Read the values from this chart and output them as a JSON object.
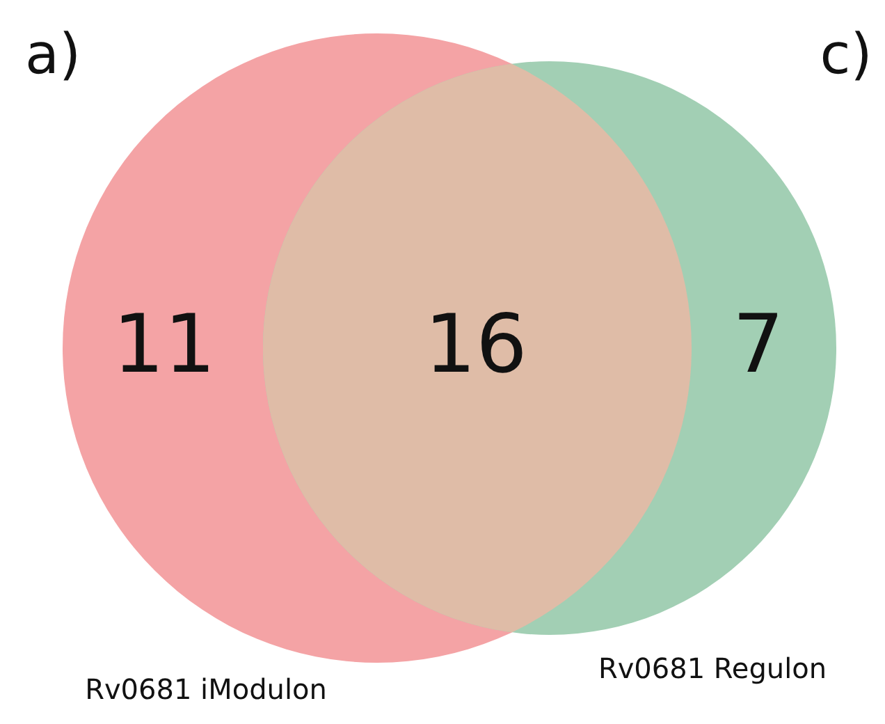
{
  "chart_data": {
    "type": "other",
    "categories": [
      "Rv0681 iModulon",
      null,
      "Rv0681 Regulon"
    ],
    "values": [
      11,
      16,
      7
    ],
    "colors": [
      "#f4a3a5",
      "#dfbca7",
      "#a2cfb4"
    ],
    "data_labels": true,
    "annotations": [
      "a)",
      "c)"
    ]
  }
}
